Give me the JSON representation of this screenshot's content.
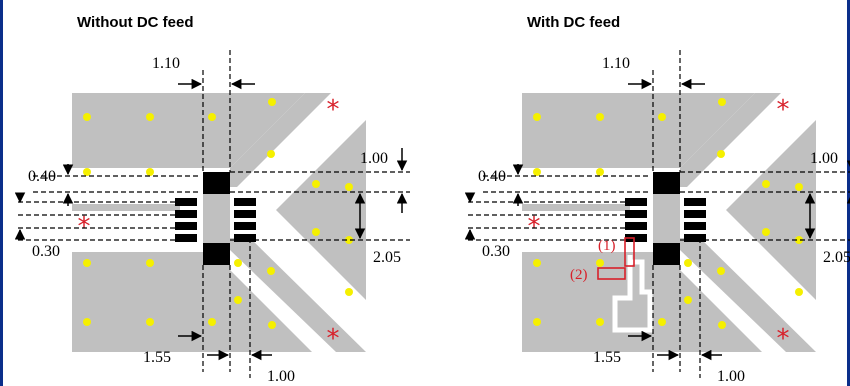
{
  "colors": {
    "pad_fill": "#c0c0c0",
    "via_fill": "#f5f000",
    "component_fill": "#000000",
    "star_color": "#d8202a",
    "dc_box_color": "#d8202a",
    "frame_color": "#0b2e8a"
  },
  "panels": [
    {
      "title": "Without DC feed",
      "dims": {
        "top": "1.10",
        "left_upper": "0.40",
        "left_lower": "0.30",
        "right_upper": "1.00",
        "right_lower": "2.05",
        "bottom_left": "1.55",
        "bottom_right": "1.00"
      },
      "star_symbol": "*"
    },
    {
      "title": "With DC feed",
      "dims": {
        "top": "1.10",
        "left_upper": "0.40",
        "left_lower": "0.30",
        "right_upper": "1.00",
        "right_lower": "2.05",
        "bottom_left": "1.55",
        "bottom_right": "1.00"
      },
      "star_symbol": "*",
      "dc_labels": {
        "first": "(1)",
        "second": "(2)"
      }
    }
  ]
}
